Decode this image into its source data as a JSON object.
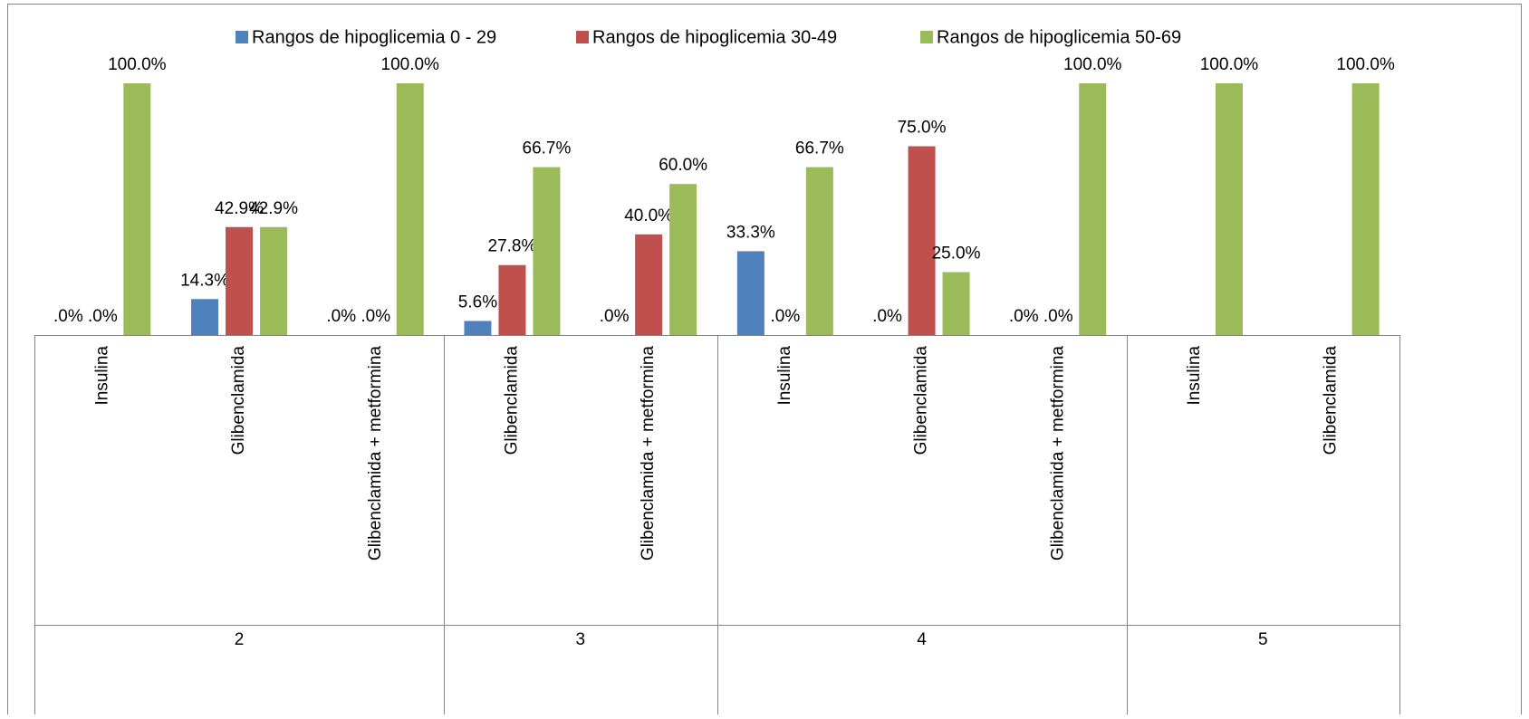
{
  "chart_data": {
    "type": "bar",
    "categories": [
      "Insulina",
      "Glibenclamida",
      "Glibenclamida + metformina",
      "Glibenclamida",
      "Glibenclamida + metformina",
      "Insulina",
      "Glibenclamida",
      "Glibenclamida + metformina",
      "Insulina",
      "Glibenclamida"
    ],
    "groups": [
      "2",
      "2",
      "2",
      "3",
      "3",
      "4",
      "4",
      "4",
      "5",
      "5"
    ],
    "series": [
      {
        "name": "Rangos de hipoglicemia 0 - 29",
        "color": "#4f81bd",
        "values": [
          0,
          14.3,
          0,
          5.6,
          0,
          33.3,
          0,
          0,
          null,
          null
        ],
        "value_labels": [
          ".0%",
          "14.3%",
          ".0%",
          "5.6%",
          ".0%",
          "33.3%",
          ".0%",
          ".0%",
          null,
          null
        ]
      },
      {
        "name": "Rangos de hipoglicemia 30-49",
        "color": "#c0504d",
        "values": [
          0,
          42.9,
          0,
          27.8,
          40,
          0,
          75,
          0,
          null,
          null
        ],
        "value_labels": [
          ".0%",
          "42.9%",
          ".0%",
          "27.8%",
          "40.0%",
          ".0%",
          "75.0%",
          ".0%",
          null,
          null
        ]
      },
      {
        "name": "Rangos de hipoglicemia 50-69",
        "color": "#9bbb59",
        "values": [
          100,
          42.9,
          100,
          66.7,
          60,
          66.7,
          25,
          100,
          100,
          100
        ],
        "value_labels": [
          "100.0%",
          "42.9%",
          "100.0%",
          "66.7%",
          "60.0%",
          "66.7%",
          "25.0%",
          "100.0%",
          "100.0%",
          "100.0%"
        ]
      }
    ],
    "ylim": [
      0,
      100
    ],
    "legend": "top"
  }
}
